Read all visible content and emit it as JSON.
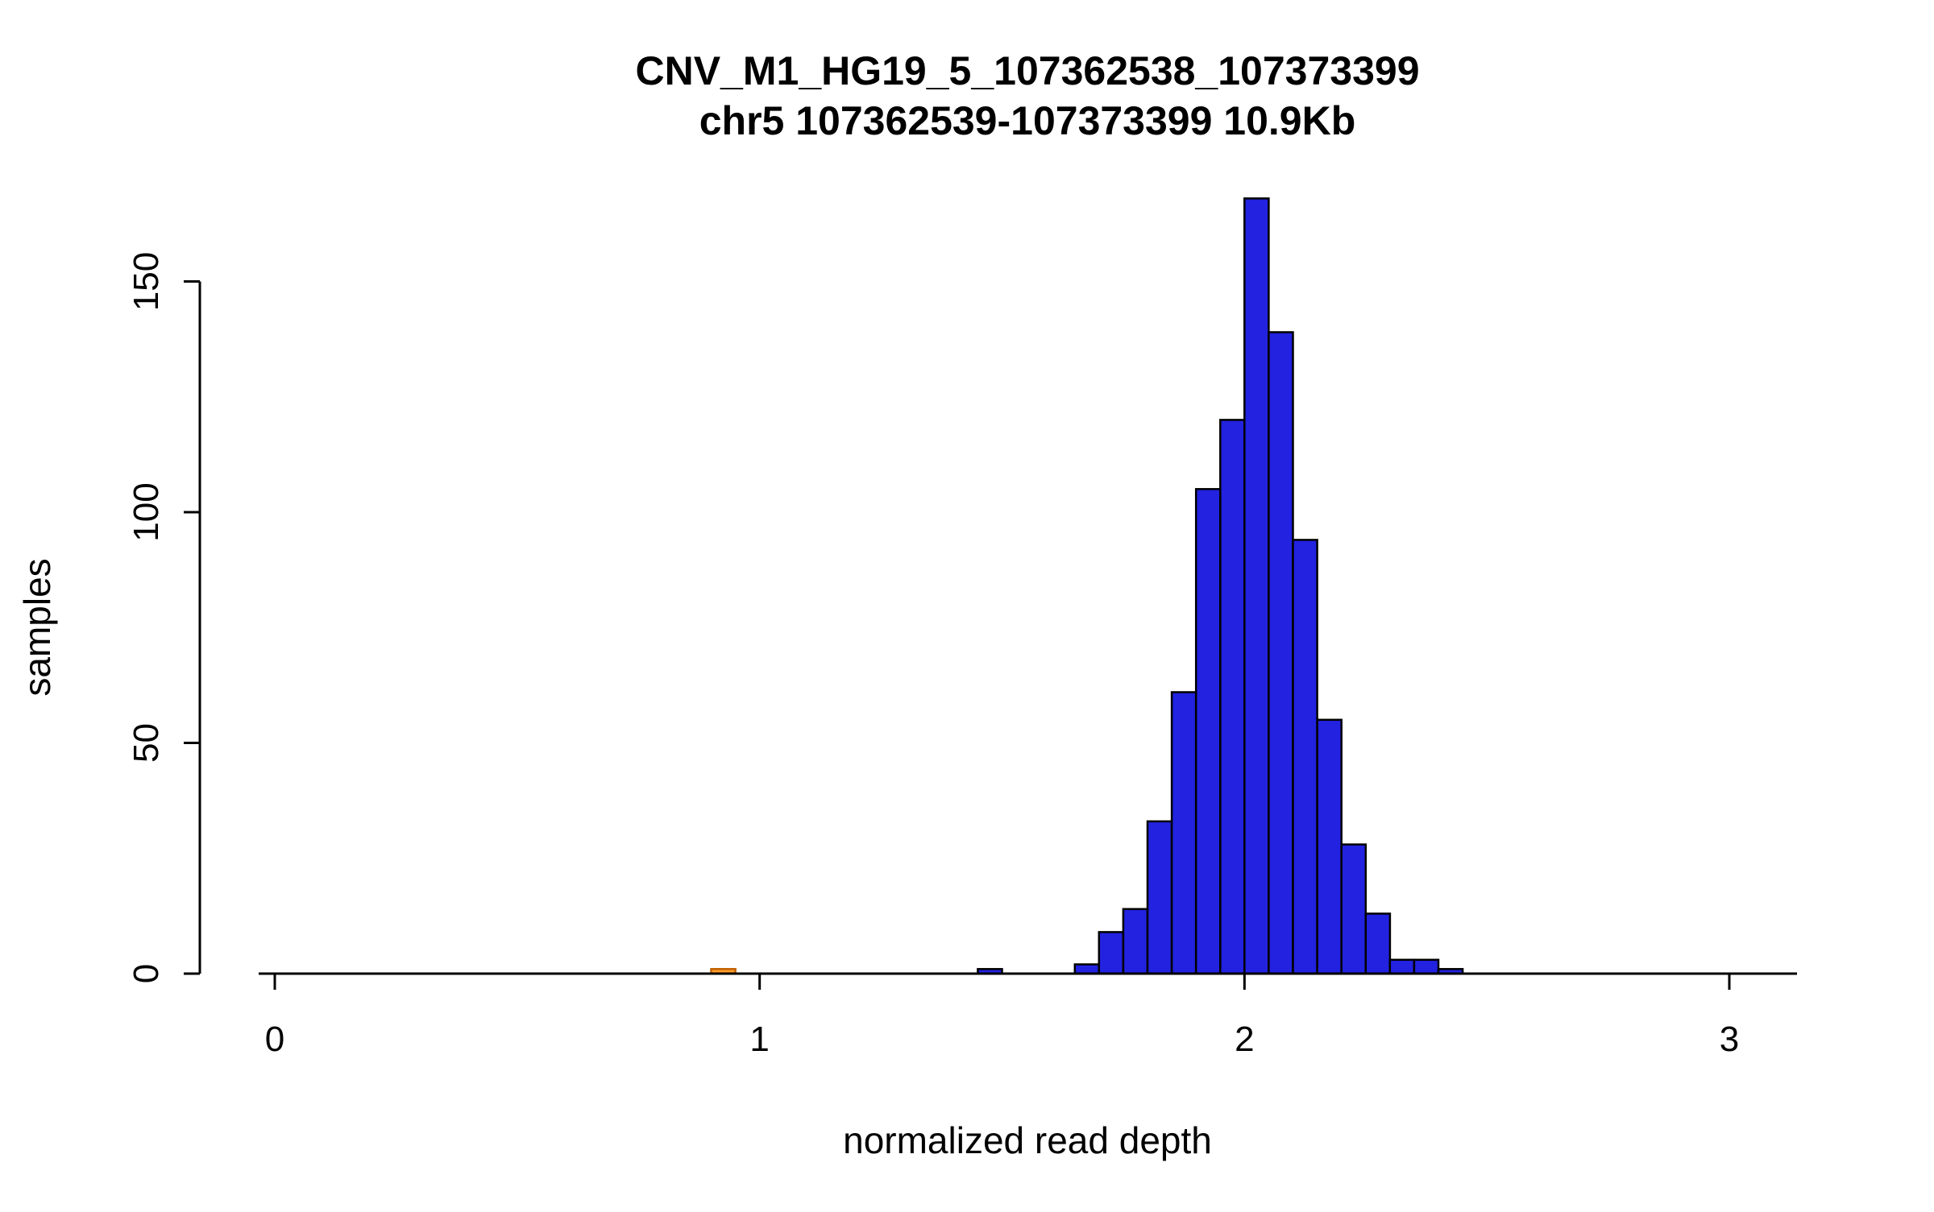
{
  "chart_data": {
    "type": "histogram",
    "title": "CNV_M1_HG19_5_107362538_107373399",
    "subtitle": "chr5 107362539-107373399 10.9Kb",
    "xlabel": "normalized read depth",
    "ylabel": "samples",
    "x_tick_values": [
      0,
      1,
      2,
      3
    ],
    "y_tick_values": [
      0,
      50,
      100,
      150
    ],
    "xlim": [
      0,
      3.15
    ],
    "ylim": [
      0,
      168
    ],
    "grid": "off",
    "legend": "none",
    "bin_width": 0.05,
    "bars": [
      {
        "x": 0.9,
        "count": 1,
        "color": "orange"
      },
      {
        "x": 1.45,
        "count": 1,
        "color": "blue"
      },
      {
        "x": 1.65,
        "count": 2,
        "color": "blue"
      },
      {
        "x": 1.7,
        "count": 9,
        "color": "blue"
      },
      {
        "x": 1.75,
        "count": 14,
        "color": "blue"
      },
      {
        "x": 1.8,
        "count": 33,
        "color": "blue"
      },
      {
        "x": 1.85,
        "count": 61,
        "color": "blue"
      },
      {
        "x": 1.9,
        "count": 105,
        "color": "blue"
      },
      {
        "x": 1.95,
        "count": 120,
        "color": "blue"
      },
      {
        "x": 2.0,
        "count": 168,
        "color": "blue"
      },
      {
        "x": 2.05,
        "count": 139,
        "color": "blue"
      },
      {
        "x": 2.1,
        "count": 94,
        "color": "blue"
      },
      {
        "x": 2.15,
        "count": 55,
        "color": "blue"
      },
      {
        "x": 2.2,
        "count": 28,
        "color": "blue"
      },
      {
        "x": 2.25,
        "count": 13,
        "color": "blue"
      },
      {
        "x": 2.3,
        "count": 3,
        "color": "blue"
      },
      {
        "x": 2.35,
        "count": 3,
        "color": "blue"
      },
      {
        "x": 2.4,
        "count": 1,
        "color": "blue"
      }
    ],
    "colors": {
      "blue": "#2222E0",
      "orange": "#FF9E2A",
      "bar_stroke": "#000000",
      "orange_stroke": "#C06000",
      "axis": "#000000"
    }
  }
}
